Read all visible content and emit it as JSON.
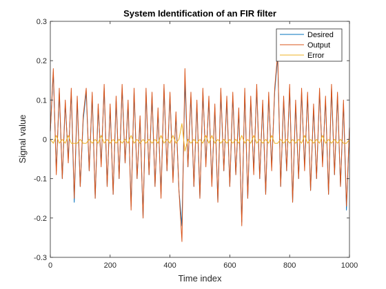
{
  "chart_data": {
    "type": "line",
    "title": "System Identification of an FIR filter",
    "xlabel": "Time index",
    "ylabel": "Signal value",
    "xlim": [
      0,
      1000
    ],
    "ylim": [
      -0.3,
      0.3
    ],
    "xticks": [
      0,
      200,
      400,
      600,
      800,
      1000
    ],
    "xtick_labels": [
      "0",
      "200",
      "400",
      "600",
      "800",
      "1000"
    ],
    "yticks": [
      -0.3,
      -0.2,
      -0.1,
      0,
      0.1,
      0.2,
      0.3
    ],
    "ytick_labels": [
      "-0.3",
      "-0.2",
      "-0.1",
      "0",
      "0.1",
      "0.2",
      "0.3"
    ],
    "grid": false,
    "legend_position": "top-right",
    "sampling": "approximate: 101 samples every 10 time-index units from 0 to 1000 (original signal has 1000 samples)",
    "x": [
      0,
      10,
      20,
      30,
      40,
      50,
      60,
      70,
      80,
      90,
      100,
      110,
      120,
      130,
      140,
      150,
      160,
      170,
      180,
      190,
      200,
      210,
      220,
      230,
      240,
      250,
      260,
      270,
      280,
      290,
      300,
      310,
      320,
      330,
      340,
      350,
      360,
      370,
      380,
      390,
      400,
      410,
      420,
      430,
      440,
      450,
      460,
      470,
      480,
      490,
      500,
      510,
      520,
      530,
      540,
      550,
      560,
      570,
      580,
      590,
      600,
      610,
      620,
      630,
      640,
      650,
      660,
      670,
      680,
      690,
      700,
      710,
      720,
      730,
      740,
      750,
      760,
      770,
      780,
      790,
      800,
      810,
      820,
      830,
      840,
      850,
      860,
      870,
      880,
      890,
      900,
      910,
      920,
      930,
      940,
      950,
      960,
      970,
      980,
      990,
      1000
    ],
    "series": [
      {
        "name": "Desired",
        "color": "#0072BD",
        "values": [
          0.02,
          0.17,
          -0.08,
          0.12,
          -0.1,
          0.09,
          -0.05,
          0.12,
          -0.16,
          0.1,
          -0.12,
          0.05,
          0.12,
          -0.08,
          0.11,
          -0.15,
          0.08,
          -0.06,
          0.13,
          -0.12,
          0.08,
          -0.14,
          0.1,
          -0.1,
          0.13,
          -0.06,
          0.09,
          -0.17,
          0.12,
          -0.1,
          0.05,
          -0.2,
          0.12,
          -0.09,
          0.11,
          -0.12,
          0.07,
          -0.14,
          0.13,
          -0.08,
          0.11,
          -0.1,
          0.06,
          -0.13,
          -0.22,
          0.15,
          -0.07,
          0.11,
          -0.12,
          0.09,
          -0.15,
          0.12,
          -0.06,
          0.1,
          -0.11,
          0.08,
          -0.16,
          0.12,
          -0.08,
          0.1,
          -0.12,
          0.11,
          -0.09,
          0.07,
          -0.21,
          0.12,
          -0.15,
          0.1,
          -0.08,
          0.13,
          -0.1,
          0.09,
          -0.14,
          0.11,
          -0.07,
          0.12,
          0.21,
          -0.12,
          0.1,
          -0.08,
          0.13,
          -0.16,
          0.09,
          -0.1,
          0.12,
          -0.07,
          0.11,
          -0.13,
          0.08,
          -0.1,
          0.12,
          -0.06,
          0.1,
          -0.14,
          0.13,
          -0.09,
          0.11,
          -0.12,
          0.09,
          -0.18,
          0.03
        ]
      },
      {
        "name": "Output",
        "color": "#D95319",
        "values": [
          0.02,
          0.18,
          -0.09,
          0.13,
          -0.1,
          0.1,
          -0.06,
          0.13,
          -0.15,
          0.11,
          -0.12,
          0.06,
          0.13,
          -0.08,
          0.12,
          -0.15,
          0.09,
          -0.07,
          0.14,
          -0.12,
          0.09,
          -0.14,
          0.11,
          -0.1,
          0.14,
          -0.06,
          0.1,
          -0.18,
          0.13,
          -0.1,
          0.06,
          -0.2,
          0.13,
          -0.09,
          0.12,
          -0.12,
          0.08,
          -0.15,
          0.14,
          -0.08,
          0.12,
          -0.11,
          0.07,
          -0.13,
          -0.26,
          0.18,
          -0.07,
          0.12,
          -0.12,
          0.1,
          -0.15,
          0.13,
          -0.07,
          0.11,
          -0.12,
          0.09,
          -0.16,
          0.13,
          -0.08,
          0.11,
          -0.12,
          0.12,
          -0.09,
          0.08,
          -0.22,
          0.13,
          -0.15,
          0.11,
          -0.09,
          0.14,
          -0.1,
          0.1,
          -0.14,
          0.12,
          -0.08,
          0.13,
          0.22,
          -0.12,
          0.11,
          -0.08,
          0.14,
          -0.16,
          0.1,
          -0.1,
          0.13,
          -0.08,
          0.12,
          -0.13,
          0.09,
          -0.1,
          0.13,
          -0.07,
          0.11,
          -0.14,
          0.14,
          -0.09,
          0.12,
          -0.12,
          0.1,
          -0.17,
          0.03
        ]
      },
      {
        "name": "Error",
        "color": "#EDB120",
        "values": [
          0.0,
          -0.01,
          0.01,
          -0.01,
          0.0,
          -0.01,
          0.01,
          -0.01,
          -0.01,
          -0.01,
          0.0,
          -0.01,
          -0.01,
          0.0,
          -0.01,
          0.0,
          -0.01,
          0.01,
          -0.01,
          0.0,
          -0.01,
          0.0,
          -0.01,
          0.0,
          -0.01,
          0.0,
          -0.01,
          0.01,
          -0.01,
          0.0,
          -0.01,
          0.0,
          -0.01,
          0.0,
          -0.01,
          0.0,
          -0.01,
          0.01,
          -0.01,
          0.0,
          -0.01,
          0.01,
          -0.01,
          0.0,
          0.04,
          -0.03,
          0.0,
          -0.01,
          0.0,
          -0.01,
          0.0,
          -0.01,
          0.01,
          -0.01,
          0.01,
          -0.01,
          0.0,
          -0.01,
          0.0,
          -0.01,
          0.0,
          -0.01,
          0.0,
          -0.01,
          0.01,
          -0.01,
          0.0,
          -0.01,
          0.01,
          -0.01,
          0.0,
          -0.01,
          0.0,
          -0.01,
          0.01,
          -0.01,
          -0.01,
          0.0,
          -0.01,
          0.0,
          -0.01,
          0.0,
          -0.01,
          0.0,
          -0.01,
          0.01,
          -0.01,
          0.0,
          -0.01,
          0.0,
          -0.01,
          0.01,
          -0.01,
          0.0,
          -0.01,
          0.0,
          -0.01,
          0.0,
          -0.01,
          -0.01,
          0.0
        ]
      }
    ]
  }
}
